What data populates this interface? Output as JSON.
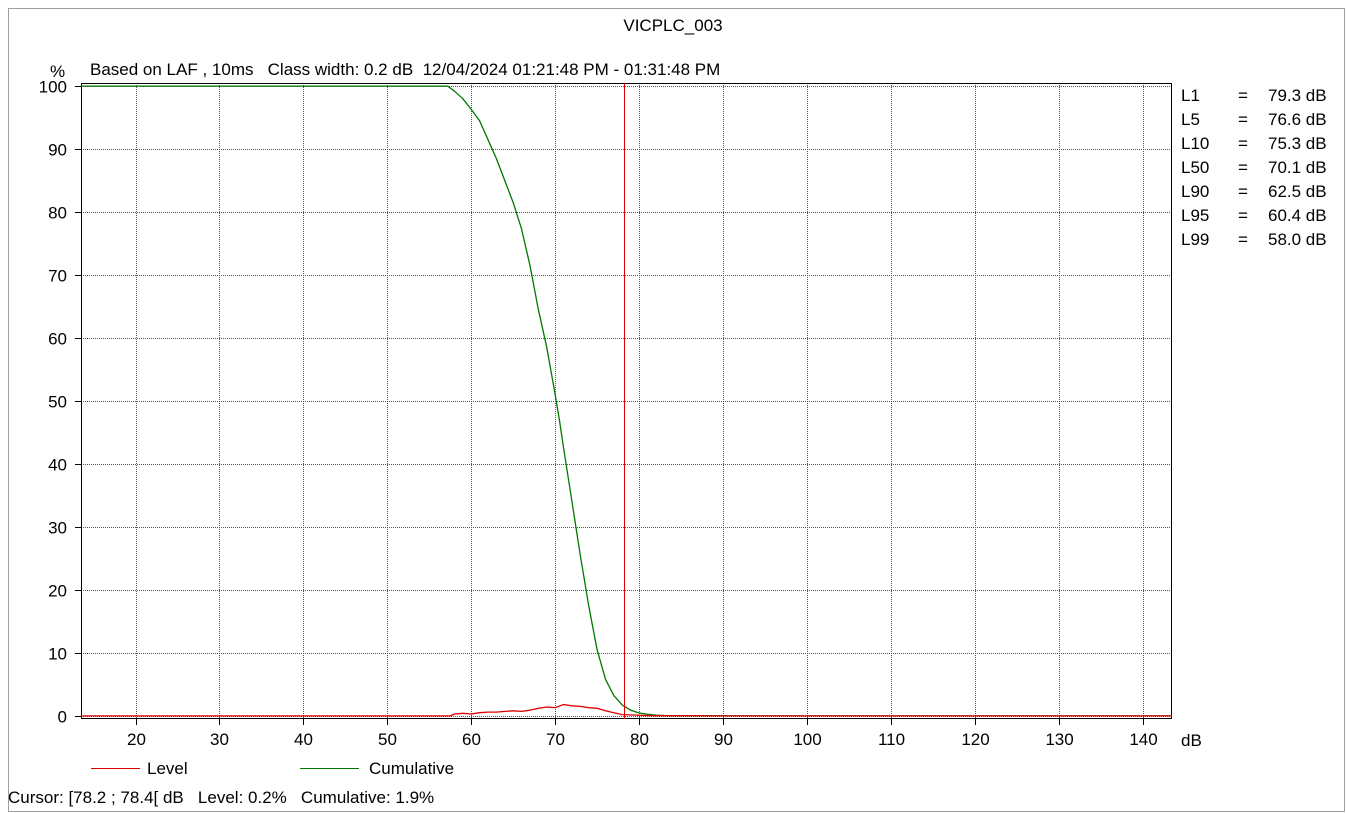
{
  "chart_data": {
    "type": "line",
    "title": "VICPLC_003",
    "subtitle": "Based on LAF , 10ms   Class width: 0.2 dB  12/04/2024 01:21:48 PM - 01:31:48 PM",
    "xlabel": "dB",
    "ylabel": "%",
    "xlim": [
      13.5,
      143.5
    ],
    "ylim": [
      -0.5,
      100.5
    ],
    "x_ticks": [
      20,
      30,
      40,
      50,
      60,
      70,
      80,
      90,
      100,
      110,
      120,
      130,
      140
    ],
    "y_ticks": [
      0,
      10,
      20,
      30,
      40,
      50,
      60,
      70,
      80,
      90,
      100
    ],
    "grid": true,
    "cursor_db": 78.2,
    "series": [
      {
        "name": "Cumulative",
        "color": "#007800",
        "x": [
          13.5,
          57.2,
          58,
          59,
          60,
          61,
          62,
          63,
          64,
          65,
          66,
          67,
          68,
          69,
          70,
          70.5,
          71,
          72,
          73,
          74,
          75,
          76,
          77,
          78,
          79,
          80,
          81,
          82,
          83,
          85,
          87,
          90,
          100,
          143.5
        ],
        "y": [
          100,
          100,
          99.2,
          98,
          96.3,
          94.5,
          91.5,
          88.5,
          85,
          81.5,
          77.3,
          71.5,
          64.5,
          58.5,
          51,
          47,
          42.5,
          34,
          25.5,
          17.5,
          10.5,
          5.8,
          3.2,
          1.7,
          0.9,
          0.45,
          0.25,
          0.12,
          0.06,
          0.03,
          0.02,
          0.01,
          0,
          0
        ]
      },
      {
        "name": "Level",
        "color": "#e00000",
        "x": [
          13.5,
          56.5,
          57.5,
          58,
          59,
          60,
          61,
          62,
          63,
          64,
          65,
          66,
          67,
          68,
          69,
          70,
          71,
          72,
          73,
          74,
          75,
          76,
          77,
          78,
          79,
          80,
          81,
          82,
          90,
          143.5
        ],
        "y": [
          0,
          0,
          0,
          0.3,
          0.4,
          0.3,
          0.5,
          0.6,
          0.6,
          0.7,
          0.8,
          0.7,
          0.9,
          1.2,
          1.4,
          1.3,
          1.8,
          1.6,
          1.5,
          1.3,
          1.2,
          0.8,
          0.5,
          0.2,
          0.15,
          0.08,
          0.04,
          0.02,
          0,
          0
        ]
      }
    ],
    "stats": [
      {
        "name": "L1",
        "eq": "=",
        "value": "79.3 dB"
      },
      {
        "name": "L5",
        "eq": "=",
        "value": "76.6 dB"
      },
      {
        "name": "L10",
        "eq": "=",
        "value": "75.3 dB"
      },
      {
        "name": "L50",
        "eq": "=",
        "value": "70.1 dB"
      },
      {
        "name": "L90",
        "eq": "=",
        "value": "62.5 dB"
      },
      {
        "name": "L95",
        "eq": "=",
        "value": "60.4 dB"
      },
      {
        "name": "L99",
        "eq": "=",
        "value": "58.0 dB"
      }
    ],
    "legend": [
      {
        "label": "Level",
        "color": "#e00000"
      },
      {
        "label": "Cumulative",
        "color": "#007800"
      }
    ],
    "cursor_readout": "Cursor: [78.2 ; 78.4[ dB   Level: 0.2%   Cumulative: 1.9%"
  }
}
